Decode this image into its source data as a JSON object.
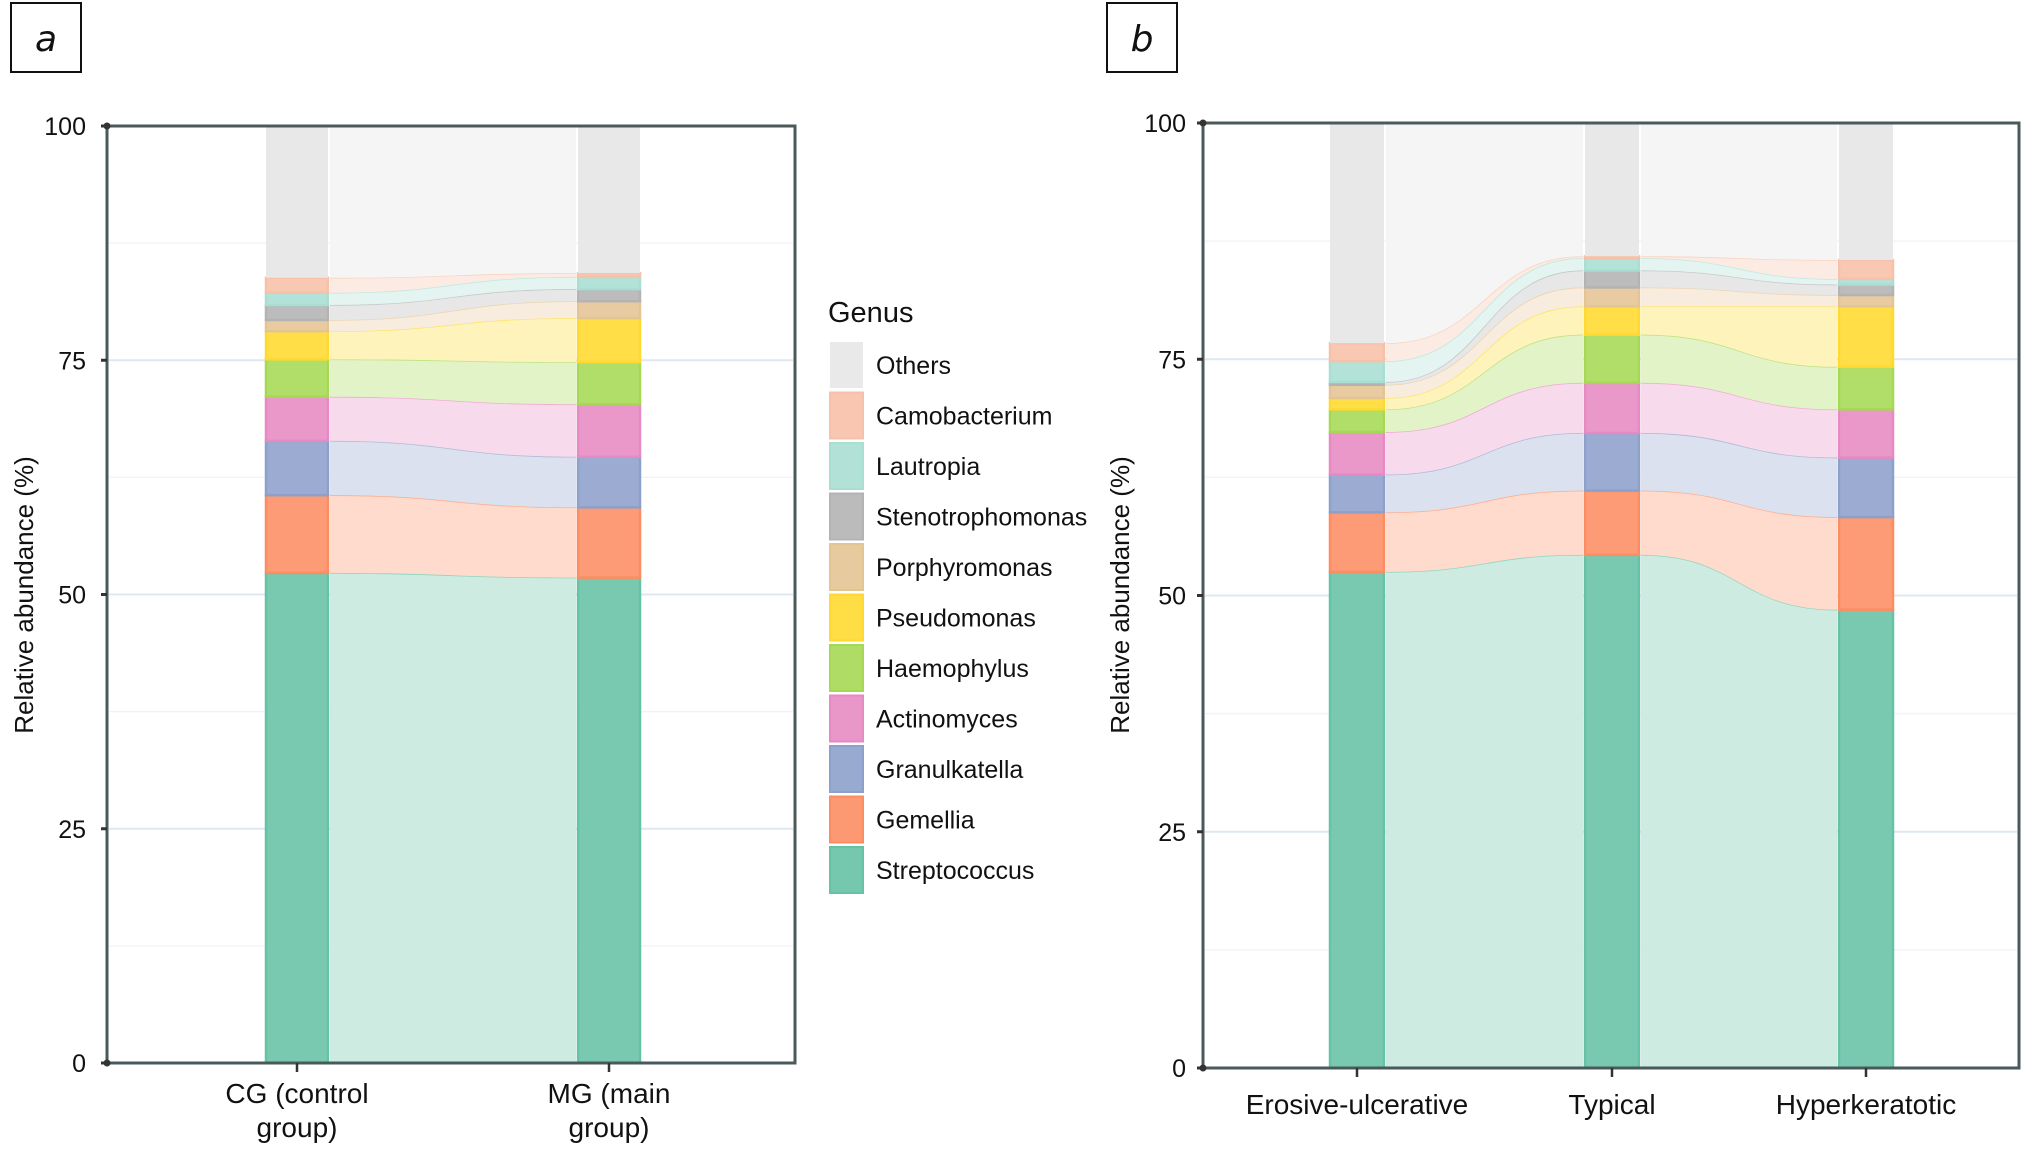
{
  "chart_data": [
    {
      "panel": "a",
      "type": "bar",
      "subtype": "stacked-bar-with-flows (alluvial)",
      "title": "",
      "xlabel": "",
      "ylabel": "Relative abundance (%)",
      "ylim": [
        0,
        100
      ],
      "yticks": [
        "0",
        "25",
        "50",
        "75",
        "100"
      ],
      "grid": true,
      "categories": [
        "CG (control group)",
        "MG (main group)"
      ],
      "category_lines": [
        [
          "CG (control",
          "group)"
        ],
        [
          "MG (main",
          "group)"
        ]
      ],
      "series": [
        {
          "name": "Streptococcus",
          "values": [
            52.3,
            51.8
          ]
        },
        {
          "name": "Gemellia",
          "values": [
            8.3,
            7.5
          ]
        },
        {
          "name": "Granulkatella",
          "values": [
            5.8,
            5.4
          ]
        },
        {
          "name": "Actinomyces",
          "values": [
            4.7,
            5.6
          ]
        },
        {
          "name": "Haemophylus",
          "values": [
            4.0,
            4.5
          ]
        },
        {
          "name": "Pseudomonas",
          "values": [
            3.0,
            4.7
          ]
        },
        {
          "name": "Porphyromonas",
          "values": [
            1.2,
            1.8
          ]
        },
        {
          "name": "Stenotrophomonas",
          "values": [
            1.6,
            1.3
          ]
        },
        {
          "name": "Lautropia",
          "values": [
            1.3,
            1.3
          ]
        },
        {
          "name": "Camobacterium",
          "values": [
            1.6,
            0.4
          ]
        },
        {
          "name": "Others",
          "values": [
            16.2,
            15.7
          ]
        }
      ]
    },
    {
      "panel": "b",
      "type": "bar",
      "subtype": "stacked-bar-with-flows (alluvial)",
      "title": "",
      "xlabel": "",
      "ylabel": "Relative abundance (%)",
      "ylim": [
        0,
        100
      ],
      "yticks": [
        "0",
        "25",
        "50",
        "75",
        "100"
      ],
      "grid": true,
      "categories": [
        "Erosive-ulcerative",
        "Typical",
        "Hyperkeratotic"
      ],
      "category_lines": [
        [
          "Erosive-ulcerative"
        ],
        [
          "Typical"
        ],
        [
          "Hyperkeratotic"
        ]
      ],
      "series": [
        {
          "name": "Streptococcus",
          "values": [
            52.5,
            54.3,
            48.5
          ]
        },
        {
          "name": "Gemellia",
          "values": [
            6.3,
            6.8,
            9.8
          ]
        },
        {
          "name": "Granulkatella",
          "values": [
            4.0,
            6.1,
            6.3
          ]
        },
        {
          "name": "Actinomyces",
          "values": [
            4.5,
            5.3,
            5.1
          ]
        },
        {
          "name": "Haemophylus",
          "values": [
            2.4,
            5.1,
            4.5
          ]
        },
        {
          "name": "Pseudomonas",
          "values": [
            1.2,
            3.0,
            6.4
          ]
        },
        {
          "name": "Porphyromonas",
          "values": [
            1.4,
            2.0,
            1.2
          ]
        },
        {
          "name": "Stenotrophomonas",
          "values": [
            0.3,
            1.8,
            1.1
          ]
        },
        {
          "name": "Lautropia",
          "values": [
            2.2,
            1.3,
            0.6
          ]
        },
        {
          "name": "Camobacterium",
          "values": [
            1.9,
            0.2,
            2.0
          ]
        },
        {
          "name": "Others",
          "values": [
            23.4,
            14.1,
            14.5
          ]
        }
      ]
    }
  ],
  "legend": {
    "title": "Genus",
    "placement": "between-panels (right of panel a)",
    "items": [
      {
        "name": "Others",
        "color": "#e6e6e6"
      },
      {
        "name": "Camobacterium",
        "color": "#f7c0a8"
      },
      {
        "name": "Lautropia",
        "color": "#a9ded3"
      },
      {
        "name": "Stenotrophomonas",
        "color": "#b3b3b3"
      },
      {
        "name": "Porphyromonas",
        "color": "#e5c494"
      },
      {
        "name": "Pseudomonas",
        "color": "#ffd92f"
      },
      {
        "name": "Haemophylus",
        "color": "#a6d854"
      },
      {
        "name": "Actinomyces",
        "color": "#e78ac3"
      },
      {
        "name": "Granulkatella",
        "color": "#8da0cb"
      },
      {
        "name": "Gemellia",
        "color": "#fc8d62"
      },
      {
        "name": "Streptococcus",
        "color": "#66c2a5"
      }
    ]
  },
  "panel_tags": [
    "a",
    "b"
  ],
  "colors": {
    "axis": "#4a5a5a",
    "gridline": "#dfe8ef",
    "flow_opacity_note": "ribbons use pale tints of genus colors"
  }
}
